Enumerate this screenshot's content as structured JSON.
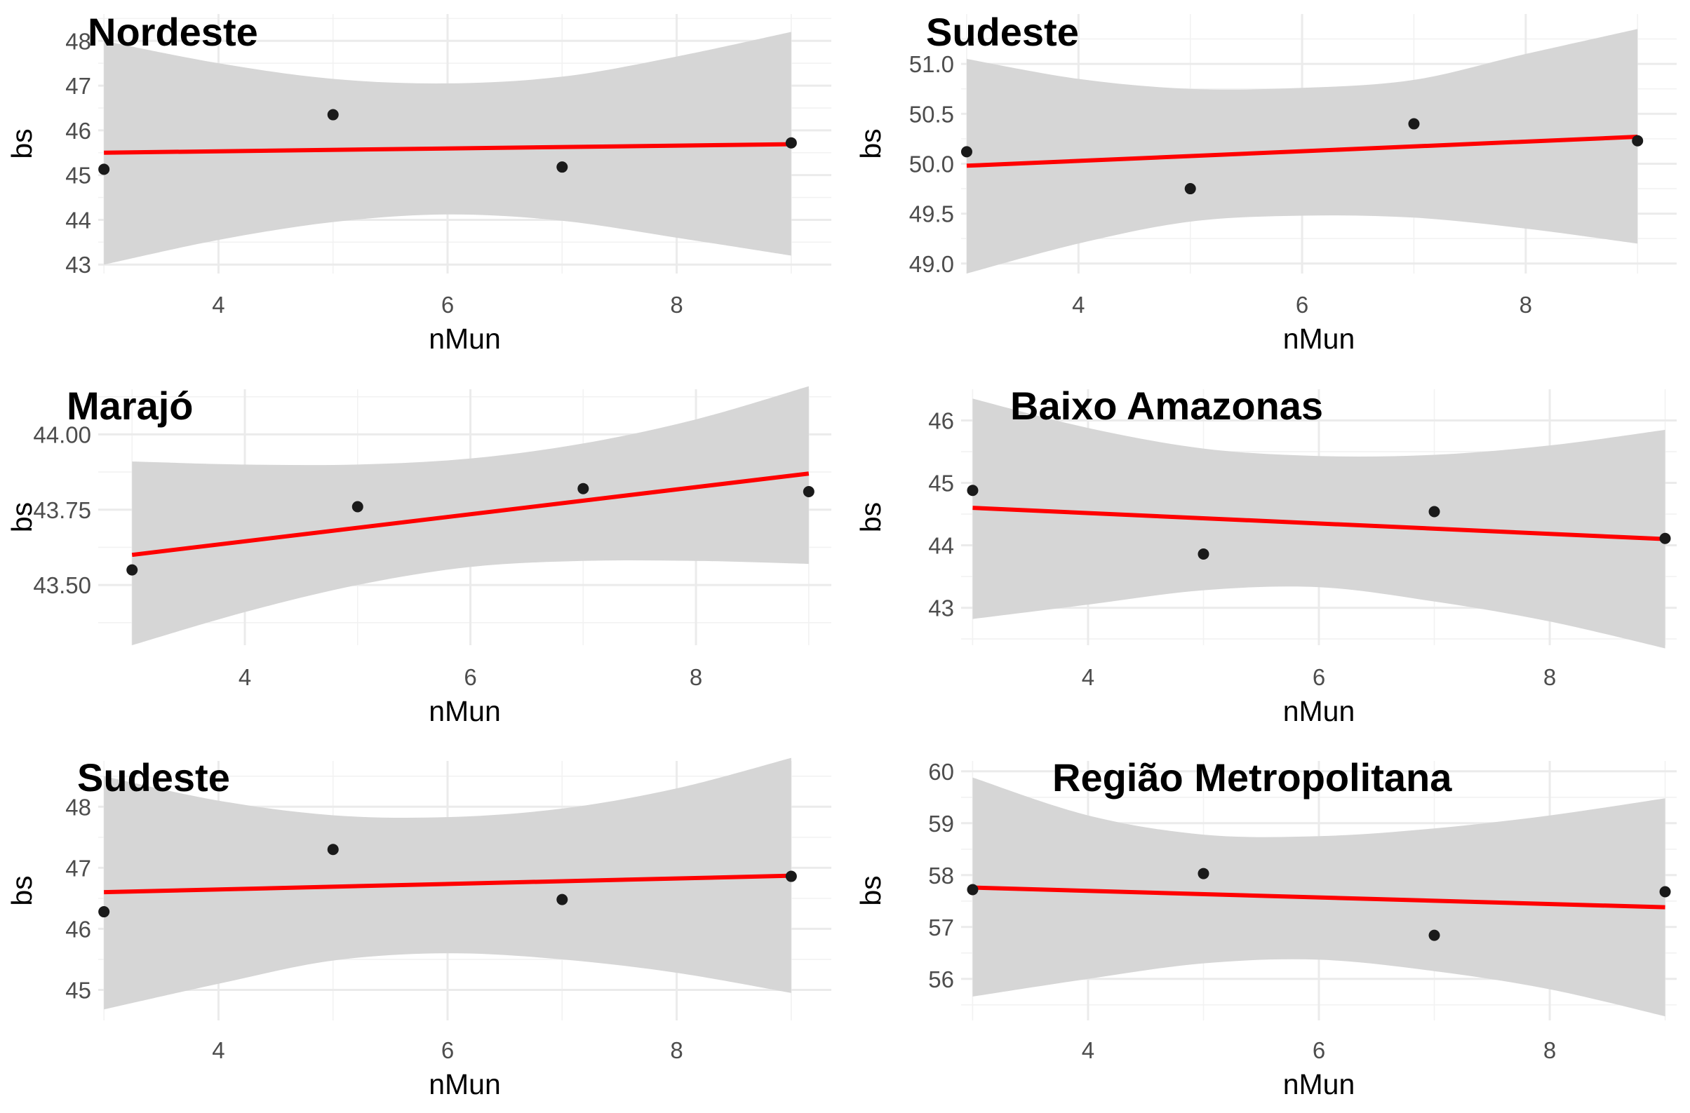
{
  "chart_data": [
    {
      "type": "scatter",
      "title": "Nordeste",
      "xlabel": "nMun",
      "ylabel": "bs",
      "x": [
        3,
        5,
        7,
        9
      ],
      "y": [
        45.13,
        46.35,
        45.18,
        45.72
      ],
      "fit": {
        "x0": 3,
        "y0": 45.5,
        "x1": 9,
        "y1": 45.69
      },
      "band": [
        [
          3,
          43.0,
          48.0
        ],
        [
          4,
          43.55,
          47.5
        ],
        [
          5,
          43.95,
          47.15
        ],
        [
          6,
          44.12,
          47.05
        ],
        [
          7,
          43.98,
          47.2
        ],
        [
          8,
          43.6,
          47.65
        ],
        [
          9,
          43.2,
          48.2
        ]
      ],
      "xlim": [
        2.95,
        9.35
      ],
      "ylim": [
        42.8,
        48.6
      ],
      "xticks": [
        4,
        6,
        8
      ],
      "yticks": [
        43,
        44,
        45,
        46,
        47,
        48
      ],
      "grid": true
    },
    {
      "type": "scatter",
      "title": "Sudeste",
      "xlabel": "nMun",
      "ylabel": "bs",
      "x": [
        3,
        5,
        7,
        9
      ],
      "y": [
        50.12,
        49.75,
        50.4,
        50.23
      ],
      "fit": {
        "x0": 3,
        "y0": 49.98,
        "x1": 9,
        "y1": 50.27
      },
      "band": [
        [
          3,
          48.9,
          51.05
        ],
        [
          4,
          49.2,
          50.85
        ],
        [
          5,
          49.42,
          50.75
        ],
        [
          6,
          49.48,
          50.76
        ],
        [
          7,
          49.46,
          50.84
        ],
        [
          8,
          49.35,
          51.1
        ],
        [
          9,
          49.2,
          51.35
        ]
      ],
      "xlim": [
        2.95,
        9.35
      ],
      "ylim": [
        48.9,
        51.5
      ],
      "xticks": [
        4,
        6,
        8
      ],
      "yticks": [
        49.0,
        49.5,
        50.0,
        50.5,
        51.0
      ],
      "ytick_labels": [
        "49.0",
        "49.5",
        "50.0",
        "50.5",
        "51.0"
      ],
      "grid": true
    },
    {
      "type": "scatter",
      "title": "Marajó",
      "xlabel": "nMun",
      "ylabel": "bs",
      "x": [
        3,
        5,
        7,
        9
      ],
      "y": [
        43.55,
        43.76,
        43.82,
        43.81
      ],
      "fit": {
        "x0": 3,
        "y0": 43.6,
        "x1": 9,
        "y1": 43.87
      },
      "band": [
        [
          3,
          43.3,
          43.91
        ],
        [
          4,
          43.41,
          43.9
        ],
        [
          5,
          43.5,
          43.9
        ],
        [
          6,
          43.56,
          43.92
        ],
        [
          7,
          43.58,
          43.97
        ],
        [
          8,
          43.58,
          44.05
        ],
        [
          9,
          43.57,
          44.16
        ]
      ],
      "xlim": [
        2.7,
        9.2
      ],
      "ylim": [
        43.3,
        44.15
      ],
      "xticks": [
        4,
        6,
        8
      ],
      "yticks": [
        43.5,
        43.75,
        44.0
      ],
      "ytick_labels": [
        "43.50",
        "43.75",
        "44.00"
      ],
      "grid": true
    },
    {
      "type": "scatter",
      "title": "Baixo Amazonas",
      "xlabel": "nMun",
      "ylabel": "bs",
      "x": [
        3,
        5,
        7,
        9
      ],
      "y": [
        44.88,
        43.86,
        44.54,
        44.11
      ],
      "fit": {
        "x0": 3,
        "y0": 44.6,
        "x1": 9,
        "y1": 44.1
      },
      "band": [
        [
          3,
          42.82,
          46.35
        ],
        [
          4,
          43.05,
          45.88
        ],
        [
          5,
          43.28,
          45.55
        ],
        [
          6,
          43.33,
          45.43
        ],
        [
          7,
          43.1,
          45.45
        ],
        [
          8,
          42.78,
          45.6
        ],
        [
          9,
          42.35,
          45.85
        ]
      ],
      "xlim": [
        2.9,
        9.1
      ],
      "ylim": [
        42.4,
        46.5
      ],
      "xticks": [
        4,
        6,
        8
      ],
      "yticks": [
        43,
        44,
        45,
        46
      ],
      "grid": true
    },
    {
      "type": "scatter",
      "title": "Sudeste",
      "xlabel": "nMun",
      "ylabel": "bs",
      "x": [
        3,
        5,
        7,
        9
      ],
      "y": [
        46.28,
        47.3,
        46.48,
        46.86
      ],
      "fit": {
        "x0": 3,
        "y0": 46.6,
        "x1": 9,
        "y1": 46.87
      },
      "band": [
        [
          3,
          44.68,
          48.5
        ],
        [
          4,
          45.1,
          48.1
        ],
        [
          5,
          45.48,
          47.86
        ],
        [
          6,
          45.6,
          47.83
        ],
        [
          7,
          45.5,
          47.97
        ],
        [
          8,
          45.28,
          48.3
        ],
        [
          9,
          44.95,
          48.8
        ]
      ],
      "xlim": [
        2.95,
        9.35
      ],
      "ylim": [
        44.5,
        48.75
      ],
      "xticks": [
        4,
        6,
        8
      ],
      "yticks": [
        45,
        46,
        47,
        48
      ],
      "grid": true
    },
    {
      "type": "scatter",
      "title": "Região Metropolitana",
      "xlabel": "nMun",
      "ylabel": "bs",
      "x": [
        3,
        5,
        7,
        9
      ],
      "y": [
        57.72,
        58.03,
        56.84,
        57.68
      ],
      "fit": {
        "x0": 3,
        "y0": 57.76,
        "x1": 9,
        "y1": 57.38
      },
      "band": [
        [
          3,
          55.66,
          59.88
        ],
        [
          4,
          56.0,
          59.15
        ],
        [
          5,
          56.3,
          58.78
        ],
        [
          6,
          56.37,
          58.75
        ],
        [
          7,
          56.15,
          58.9
        ],
        [
          8,
          55.8,
          59.15
        ],
        [
          9,
          55.28,
          59.48
        ]
      ],
      "xlim": [
        2.9,
        9.1
      ],
      "ylim": [
        55.2,
        60.2
      ],
      "xticks": [
        4,
        6,
        8
      ],
      "yticks": [
        56,
        57,
        58,
        59,
        60
      ],
      "grid": true
    }
  ]
}
